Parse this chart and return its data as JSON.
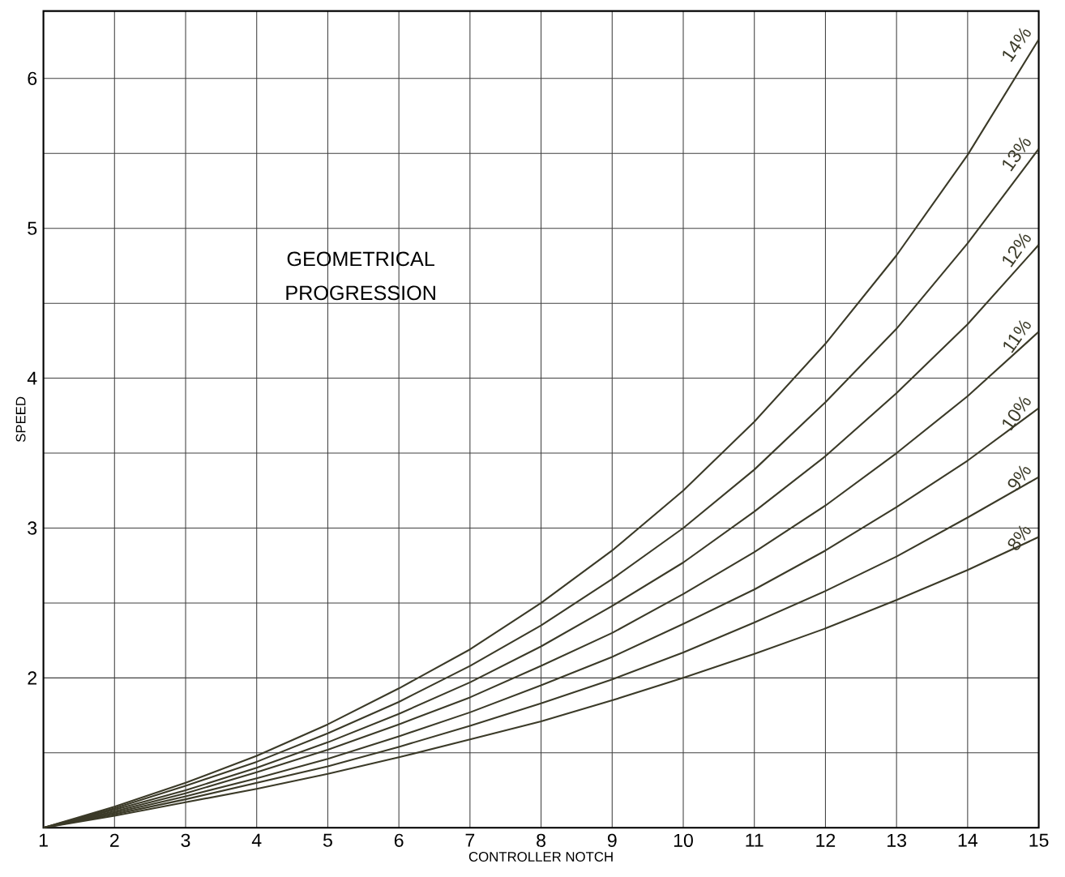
{
  "chart_data": {
    "type": "line",
    "title": "GEOMETRICAL PROGRESSION",
    "xlabel": "CONTROLLER NOTCH",
    "ylabel": "SPEED",
    "x": [
      1,
      2,
      3,
      4,
      5,
      6,
      7,
      8,
      9,
      10,
      11,
      12,
      13,
      14,
      15
    ],
    "series": [
      {
        "name": "8%",
        "color": "#3b3a28",
        "values": [
          1,
          1.08,
          1.17,
          1.26,
          1.36,
          1.47,
          1.59,
          1.71,
          1.85,
          2.0,
          2.16,
          2.33,
          2.52,
          2.72,
          2.94
        ]
      },
      {
        "name": "9%",
        "color": "#3b3a28",
        "values": [
          1,
          1.09,
          1.19,
          1.3,
          1.41,
          1.54,
          1.68,
          1.83,
          1.99,
          2.17,
          2.37,
          2.58,
          2.81,
          3.07,
          3.34
        ]
      },
      {
        "name": "10%",
        "color": "#3b3a28",
        "values": [
          1,
          1.1,
          1.21,
          1.33,
          1.46,
          1.61,
          1.77,
          1.95,
          2.14,
          2.36,
          2.59,
          2.85,
          3.14,
          3.45,
          3.8
        ]
      },
      {
        "name": "11%",
        "color": "#3b3a28",
        "values": [
          1,
          1.11,
          1.23,
          1.37,
          1.52,
          1.69,
          1.87,
          2.08,
          2.3,
          2.56,
          2.84,
          3.15,
          3.5,
          3.88,
          4.31
        ]
      },
      {
        "name": "12%",
        "color": "#3b3a28",
        "values": [
          1,
          1.12,
          1.25,
          1.4,
          1.57,
          1.76,
          1.97,
          2.21,
          2.48,
          2.77,
          3.11,
          3.48,
          3.9,
          4.36,
          4.89
        ]
      },
      {
        "name": "13%",
        "color": "#3b3a28",
        "values": [
          1,
          1.13,
          1.28,
          1.44,
          1.63,
          1.84,
          2.08,
          2.35,
          2.66,
          3.0,
          3.39,
          3.84,
          4.33,
          4.9,
          5.53
        ]
      },
      {
        "name": "14%",
        "color": "#3b3a28",
        "values": [
          1,
          1.14,
          1.3,
          1.48,
          1.69,
          1.93,
          2.19,
          2.5,
          2.85,
          3.25,
          3.71,
          4.23,
          4.82,
          5.49,
          6.26
        ]
      }
    ],
    "xlim": [
      1,
      15
    ],
    "ylim": [
      1,
      6.45
    ],
    "xticks": [
      1,
      2,
      3,
      4,
      5,
      6,
      7,
      8,
      9,
      10,
      11,
      12,
      13,
      14,
      15
    ],
    "yticks": [
      {
        "value": 1,
        "label": null
      },
      {
        "value": 1.5,
        "label": null
      },
      2,
      {
        "value": 2.5,
        "label": null
      },
      3,
      {
        "value": 3.5,
        "label": null
      },
      4,
      {
        "value": 4.5,
        "label": null
      },
      5,
      {
        "value": 5.5,
        "label": null
      },
      6
    ],
    "grid": true,
    "marker": "none",
    "line_style": "solid"
  }
}
